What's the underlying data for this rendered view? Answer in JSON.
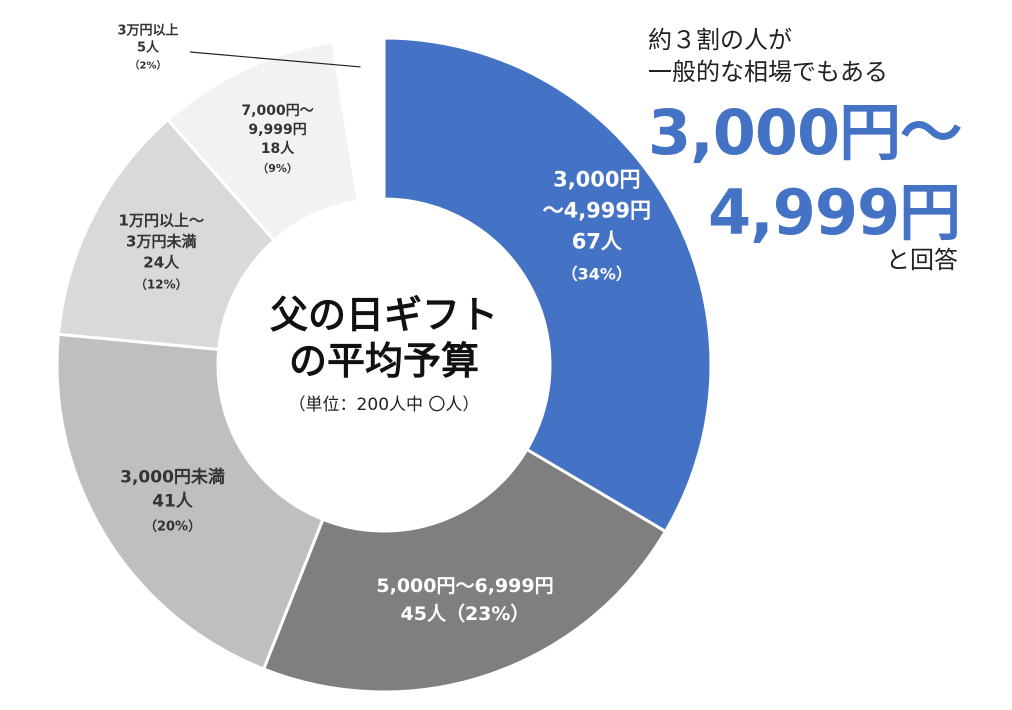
{
  "chart_data": {
    "type": "pie",
    "style": "donut",
    "title": "父の日ギフトの平均予算",
    "title_lines": [
      "父の日ギフト",
      "の平均予算"
    ],
    "unit_note": "（単位：200人中 〇人）",
    "total": 200,
    "slices": [
      {
        "lines": [
          "3,000円",
          "〜4,999円",
          "67人",
          "（34%）"
        ],
        "value": 67,
        "percent": 34,
        "color": "#4472C4",
        "text_color": "#ffffff"
      },
      {
        "lines": [
          "5,000円〜6,999円",
          "45人（23%）"
        ],
        "value": 45,
        "percent": 23,
        "color": "#7F7F7F",
        "text_color": "#ffffff"
      },
      {
        "lines": [
          "3,000円未満",
          "41人",
          "（20%）"
        ],
        "value": 41,
        "percent": 20,
        "color": "#BFBFBF",
        "text_color": "#333333"
      },
      {
        "lines": [
          "1万円以上〜",
          "3万円未満",
          "24人",
          "（12%）"
        ],
        "value": 24,
        "percent": 12,
        "color": "#D9D9D9",
        "text_color": "#333333"
      },
      {
        "lines": [
          "7,000円〜",
          "9,999円",
          "18人",
          "（9%）"
        ],
        "value": 18,
        "percent": 9,
        "color": "#F2F2F2",
        "text_color": "#333333"
      },
      {
        "lines": [
          "3万円以上",
          "5人",
          "（2%）"
        ],
        "value": 5,
        "percent": 2,
        "color": "#FFFFFF",
        "text_color": "#333333"
      }
    ]
  },
  "callout": {
    "line1": "約３割の人が",
    "line2": "一般的な相場でもある",
    "big1": "3,000円〜",
    "big2": "4,999円",
    "tail": "と回答"
  },
  "colors": {
    "accent": "#4472C4"
  }
}
